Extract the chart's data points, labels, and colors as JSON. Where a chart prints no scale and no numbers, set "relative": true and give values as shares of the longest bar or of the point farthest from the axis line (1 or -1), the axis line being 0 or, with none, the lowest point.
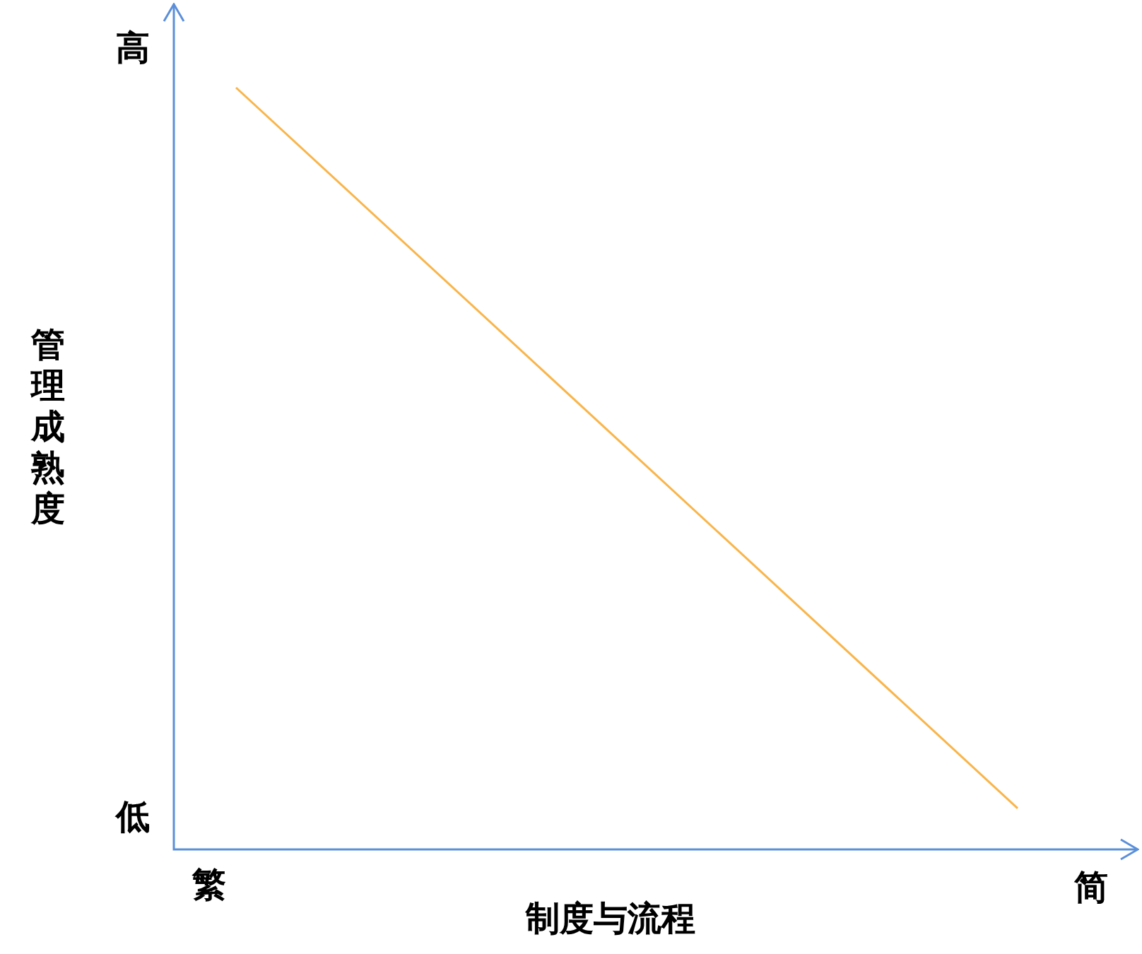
{
  "chart_data": {
    "type": "line",
    "relative": true,
    "xlabel": "制度与流程",
    "ylabel": "管理成熟度",
    "categories": [
      null,
      null
    ],
    "series": [
      {
        "color": "#f9b54a",
        "values": [
          1,
          0.054
        ]
      }
    ],
    "annotations": [
      "高",
      "低",
      "繁",
      "简"
    ],
    "grid": false,
    "legend": false,
    "marker": "none",
    "line_style": "solid"
  }
}
